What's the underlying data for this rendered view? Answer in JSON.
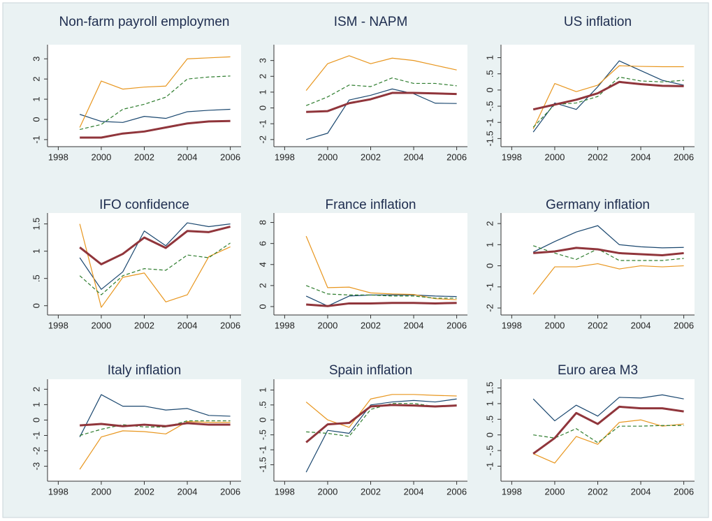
{
  "chart_data": [
    {
      "type": "line",
      "title": "Non-farm payroll employmen",
      "x": [
        1999,
        2000,
        2001,
        2002,
        2003,
        2004,
        2005,
        2006
      ],
      "xlim": [
        1997.5,
        2006.5
      ],
      "xticks": [
        1998,
        2000,
        2002,
        2004,
        2006
      ],
      "ylim": [
        -1.35,
        3.7
      ],
      "yticks": [
        -1,
        0,
        1,
        2,
        3
      ],
      "series": [
        {
          "color": "#1a476f",
          "style": "solid",
          "values": [
            0.25,
            -0.1,
            -0.15,
            0.15,
            0.05,
            0.38,
            0.45,
            0.5
          ]
        },
        {
          "color": "#e8961e",
          "style": "solid",
          "values": [
            -0.4,
            1.9,
            1.5,
            1.6,
            1.65,
            3.0,
            3.05,
            3.1
          ]
        },
        {
          "color": "#2e7d2e",
          "style": "dashed",
          "values": [
            -0.5,
            -0.25,
            0.5,
            0.75,
            1.1,
            2.0,
            2.1,
            2.15
          ]
        },
        {
          "color": "#90353b",
          "style": "thick",
          "values": [
            -0.9,
            -0.9,
            -0.7,
            -0.6,
            -0.4,
            -0.2,
            -0.1,
            -0.08
          ]
        }
      ]
    },
    {
      "type": "line",
      "title": "ISM - NAPM",
      "x": [
        1999,
        2000,
        2001,
        2002,
        2003,
        2004,
        2005,
        2006
      ],
      "xlim": [
        1997.5,
        2006.5
      ],
      "xticks": [
        1998,
        2000,
        2002,
        2004,
        2006
      ],
      "ylim": [
        -2.45,
        4
      ],
      "yticks": [
        -2,
        -1,
        0,
        1,
        2,
        3
      ],
      "series": [
        {
          "color": "#1a476f",
          "style": "solid",
          "values": [
            -2.0,
            -1.6,
            0.5,
            0.8,
            1.2,
            0.9,
            0.3,
            0.28
          ]
        },
        {
          "color": "#e8961e",
          "style": "solid",
          "values": [
            1.1,
            2.8,
            3.3,
            2.8,
            3.15,
            3.0,
            2.7,
            2.4
          ]
        },
        {
          "color": "#2e7d2e",
          "style": "dashed",
          "values": [
            0.15,
            0.7,
            1.45,
            1.35,
            1.9,
            1.55,
            1.55,
            1.4
          ]
        },
        {
          "color": "#90353b",
          "style": "thick",
          "values": [
            -0.25,
            -0.2,
            0.3,
            0.55,
            0.95,
            0.95,
            0.92,
            0.88
          ]
        }
      ]
    },
    {
      "type": "line",
      "title": "US inflation",
      "x": [
        1999,
        2000,
        2001,
        2002,
        2003,
        2004,
        2005,
        2006
      ],
      "xlim": [
        1997.5,
        2006.5
      ],
      "xticks": [
        1998,
        2000,
        2002,
        2004,
        2006
      ],
      "ylim": [
        -1.75,
        1.4
      ],
      "yticks": [
        -1.5,
        -1,
        {
          "value": -0.5,
          "label": "-.5"
        },
        0,
        {
          "value": 0.5,
          "label": ".5"
        },
        1
      ],
      "series": [
        {
          "color": "#1a476f",
          "style": "solid",
          "values": [
            -1.3,
            -0.4,
            -0.6,
            0.1,
            0.9,
            0.6,
            0.3,
            0.15
          ]
        },
        {
          "color": "#e8961e",
          "style": "solid",
          "values": [
            -1.2,
            0.2,
            -0.05,
            0.15,
            0.75,
            0.73,
            0.72,
            0.72
          ]
        },
        {
          "color": "#2e7d2e",
          "style": "dashed",
          "values": [
            -1.15,
            -0.45,
            -0.4,
            -0.2,
            0.4,
            0.28,
            0.25,
            0.3
          ]
        },
        {
          "color": "#90353b",
          "style": "thick",
          "values": [
            -0.6,
            -0.45,
            -0.3,
            -0.1,
            0.25,
            0.18,
            0.13,
            0.12
          ]
        }
      ]
    },
    {
      "type": "line",
      "title": "IFO confidence",
      "x": [
        1999,
        2000,
        2001,
        2002,
        2003,
        2004,
        2005,
        2006
      ],
      "xlim": [
        1997.5,
        2006.5
      ],
      "xticks": [
        1998,
        2000,
        2002,
        2004,
        2006
      ],
      "ylim": [
        -0.17,
        1.7
      ],
      "yticks": [
        0,
        {
          "value": 0.5,
          "label": ".5"
        },
        1,
        1.5
      ],
      "series": [
        {
          "color": "#1a476f",
          "style": "solid",
          "values": [
            0.88,
            0.3,
            0.62,
            1.37,
            1.1,
            1.52,
            1.45,
            1.5
          ]
        },
        {
          "color": "#e8961e",
          "style": "solid",
          "values": [
            1.5,
            -0.03,
            0.52,
            0.6,
            0.07,
            0.2,
            0.9,
            1.08
          ]
        },
        {
          "color": "#2e7d2e",
          "style": "dashed",
          "values": [
            0.55,
            0.2,
            0.55,
            0.68,
            0.65,
            0.93,
            0.88,
            1.15
          ]
        },
        {
          "color": "#90353b",
          "style": "thick",
          "values": [
            1.07,
            0.76,
            0.95,
            1.25,
            1.06,
            1.37,
            1.35,
            1.45
          ]
        }
      ]
    },
    {
      "type": "line",
      "title": "France inflation",
      "x": [
        1999,
        2000,
        2001,
        2002,
        2003,
        2004,
        2005,
        2006
      ],
      "xlim": [
        1997.5,
        2006.5
      ],
      "xticks": [
        1998,
        2000,
        2002,
        2004,
        2006
      ],
      "ylim": [
        -0.8,
        8.9
      ],
      "yticks": [
        0,
        2,
        4,
        6,
        8
      ],
      "series": [
        {
          "color": "#1a476f",
          "style": "solid",
          "values": [
            1.0,
            0.05,
            1.0,
            1.1,
            1.1,
            1.1,
            1.0,
            0.95
          ]
        },
        {
          "color": "#e8961e",
          "style": "solid",
          "values": [
            6.7,
            1.8,
            1.85,
            1.3,
            1.2,
            1.15,
            0.75,
            0.65
          ]
        },
        {
          "color": "#2e7d2e",
          "style": "dashed",
          "values": [
            2.0,
            1.2,
            1.1,
            1.1,
            1.0,
            1.0,
            0.8,
            0.8
          ]
        },
        {
          "color": "#90353b",
          "style": "thick",
          "values": [
            0.2,
            0.05,
            0.3,
            0.3,
            0.35,
            0.35,
            0.3,
            0.35
          ]
        }
      ]
    },
    {
      "type": "line",
      "title": "Germany inflation",
      "x": [
        1999,
        2000,
        2001,
        2002,
        2003,
        2004,
        2005,
        2006
      ],
      "xlim": [
        1997.5,
        2006.5
      ],
      "xticks": [
        1998,
        2000,
        2002,
        2004,
        2006
      ],
      "ylim": [
        -2.33,
        2.5
      ],
      "yticks": [
        -2,
        -1,
        0,
        1,
        2
      ],
      "series": [
        {
          "color": "#1a476f",
          "style": "solid",
          "values": [
            0.65,
            1.15,
            1.6,
            1.9,
            1.0,
            0.9,
            0.85,
            0.87
          ]
        },
        {
          "color": "#e8961e",
          "style": "solid",
          "values": [
            -1.35,
            -0.05,
            -0.05,
            0.1,
            -0.15,
            0.0,
            -0.05,
            0.0
          ]
        },
        {
          "color": "#2e7d2e",
          "style": "dashed",
          "values": [
            0.95,
            0.6,
            0.3,
            0.8,
            0.25,
            0.25,
            0.25,
            0.35
          ]
        },
        {
          "color": "#90353b",
          "style": "thick",
          "values": [
            0.6,
            0.68,
            0.85,
            0.78,
            0.6,
            0.55,
            0.5,
            0.6
          ]
        }
      ]
    },
    {
      "type": "line",
      "title": "Italy inflation",
      "x": [
        1999,
        2000,
        2001,
        2002,
        2003,
        2004,
        2005,
        2006
      ],
      "xlim": [
        1997.5,
        2006.5
      ],
      "xticks": [
        1998,
        2000,
        2002,
        2004,
        2006
      ],
      "ylim": [
        -3.97,
        2.65
      ],
      "yticks": [
        -3,
        -2,
        -1,
        0,
        1,
        2
      ],
      "series": [
        {
          "color": "#1a476f",
          "style": "solid",
          "values": [
            -1.1,
            1.65,
            0.9,
            0.9,
            0.65,
            0.75,
            0.3,
            0.25
          ]
        },
        {
          "color": "#e8961e",
          "style": "solid",
          "values": [
            -3.2,
            -1.1,
            -0.7,
            -0.75,
            -0.9,
            -0.1,
            -0.15,
            -0.15
          ]
        },
        {
          "color": "#2e7d2e",
          "style": "dashed",
          "values": [
            -1.0,
            -0.6,
            -0.3,
            -0.45,
            -0.45,
            -0.05,
            -0.05,
            -0.05
          ]
        },
        {
          "color": "#90353b",
          "style": "thick",
          "values": [
            -0.35,
            -0.25,
            -0.4,
            -0.3,
            -0.4,
            -0.2,
            -0.3,
            -0.3
          ]
        }
      ]
    },
    {
      "type": "line",
      "title": "Spain inflation",
      "x": [
        1999,
        2000,
        2001,
        2002,
        2003,
        2004,
        2005,
        2006
      ],
      "xlim": [
        1997.5,
        2006.5
      ],
      "xticks": [
        1998,
        2000,
        2002,
        2004,
        2006
      ],
      "ylim": [
        -2.05,
        1.36
      ],
      "yticks": [
        -1.5,
        -1,
        {
          "value": -0.5,
          "label": "-.5"
        },
        0,
        {
          "value": 0.5,
          "label": ".5"
        },
        1
      ],
      "series": [
        {
          "color": "#1a476f",
          "style": "solid",
          "values": [
            -1.75,
            -0.35,
            -0.45,
            0.5,
            0.6,
            0.65,
            0.6,
            0.7
          ]
        },
        {
          "color": "#e8961e",
          "style": "solid",
          "values": [
            0.6,
            0.0,
            -0.25,
            0.7,
            0.85,
            0.85,
            0.82,
            0.8
          ]
        },
        {
          "color": "#2e7d2e",
          "style": "dashed",
          "values": [
            -0.4,
            -0.45,
            -0.55,
            0.35,
            0.55,
            0.55,
            0.45,
            0.5
          ]
        },
        {
          "color": "#90353b",
          "style": "thick",
          "values": [
            -0.75,
            -0.15,
            -0.1,
            0.45,
            0.5,
            0.48,
            0.45,
            0.48
          ]
        }
      ]
    },
    {
      "type": "line",
      "title": "Euro area M3",
      "x": [
        1999,
        2000,
        2001,
        2002,
        2003,
        2004,
        2005,
        2006
      ],
      "xlim": [
        1997.5,
        2006.5
      ],
      "xticks": [
        1998,
        2000,
        2002,
        2004,
        2006
      ],
      "ylim": [
        -1.48,
        1.78
      ],
      "yticks": [
        -1,
        {
          "value": -0.5,
          "label": "-.5"
        },
        0,
        {
          "value": 0.5,
          "label": ".5"
        },
        1,
        1.5
      ],
      "series": [
        {
          "color": "#1a476f",
          "style": "solid",
          "values": [
            1.15,
            0.45,
            0.95,
            0.6,
            1.2,
            1.18,
            1.28,
            1.15
          ]
        },
        {
          "color": "#e8961e",
          "style": "solid",
          "values": [
            -0.6,
            -0.9,
            -0.05,
            -0.3,
            0.4,
            0.48,
            0.28,
            0.35
          ]
        },
        {
          "color": "#2e7d2e",
          "style": "dashed",
          "values": [
            0.0,
            -0.1,
            0.2,
            -0.25,
            0.28,
            0.28,
            0.3,
            0.3
          ]
        },
        {
          "color": "#90353b",
          "style": "thick",
          "values": [
            -0.6,
            -0.1,
            0.7,
            0.35,
            0.9,
            0.85,
            0.85,
            0.75
          ]
        }
      ]
    }
  ]
}
